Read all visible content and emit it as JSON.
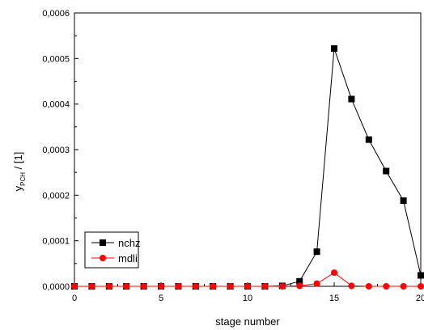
{
  "chart_data": {
    "type": "line",
    "title": "",
    "xlabel": "stage number",
    "ylabel_main": "y",
    "ylabel_sub": "PCH",
    "ylabel_unit": " / [1]",
    "xlim": [
      0,
      20
    ],
    "ylim": [
      0,
      0.0006
    ],
    "x_ticks": [
      0,
      5,
      10,
      15,
      20
    ],
    "x_tick_labels": [
      "0",
      "5",
      "10",
      "15",
      "20"
    ],
    "y_ticks": [
      0,
      0.0001,
      0.0002,
      0.0003,
      0.0004,
      0.0005,
      0.0006
    ],
    "y_tick_labels": [
      "0,0000",
      "0,0001",
      "0,0002",
      "0,0003",
      "0,0004",
      "0,0005",
      "0,0006"
    ],
    "grid": false,
    "legend_position": "bottom-left",
    "x": [
      0,
      1,
      2,
      3,
      4,
      5,
      6,
      7,
      8,
      9,
      10,
      11,
      12,
      13,
      14,
      15,
      16,
      17,
      18,
      19,
      20
    ],
    "series": [
      {
        "name": "nchz",
        "color": "#000000",
        "marker": "square",
        "values": [
          0,
          0,
          0,
          0,
          0,
          0,
          0,
          0,
          0,
          0,
          0,
          0,
          1e-06,
          1.1e-05,
          7.6e-05,
          0.000522,
          0.000411,
          0.000322,
          0.000253,
          0.000188,
          2.4e-05
        ]
      },
      {
        "name": "mdli",
        "color": "#ff0000",
        "marker": "circle",
        "values": [
          0,
          0,
          0,
          0,
          0,
          0,
          0,
          0,
          0,
          0,
          0,
          0,
          0,
          1e-06,
          6e-06,
          3e-05,
          1e-06,
          0,
          0,
          0,
          0
        ]
      }
    ]
  }
}
